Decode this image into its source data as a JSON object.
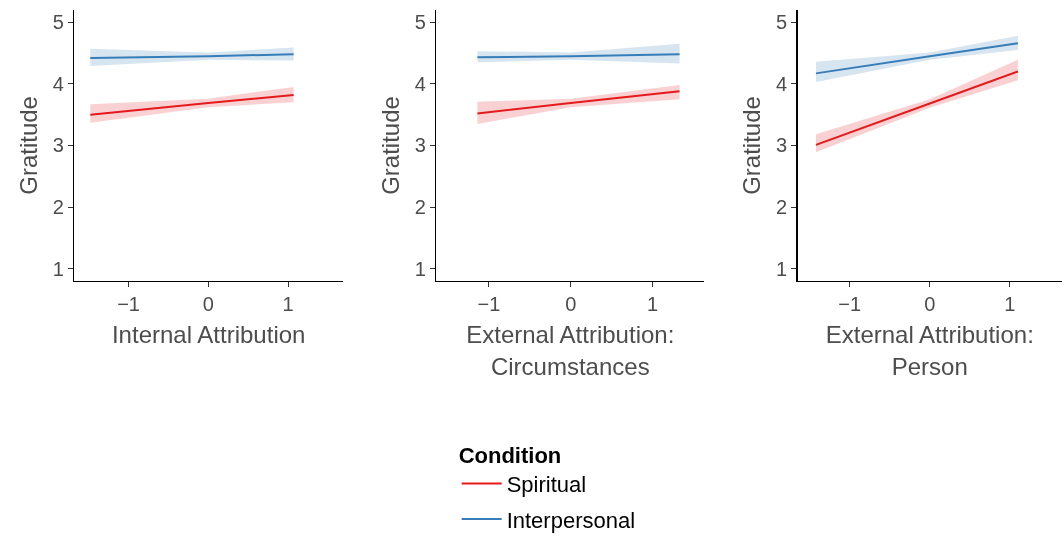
{
  "chart_data": [
    {
      "type": "line",
      "xlabel": "Internal Attribution",
      "ylabel": "Gratitude",
      "xlim": [
        -1.68,
        1.69
      ],
      "xticks": [
        -1,
        0,
        1
      ],
      "ylim": [
        0.8,
        5.2
      ],
      "yticks": [
        1,
        2,
        3,
        4,
        5
      ],
      "grid": false,
      "legend": "bottom",
      "legend_title": "Condition",
      "series": [
        {
          "name": "Spiritual",
          "color": "#e41a1c",
          "x": [
            -1.48,
            0,
            1.07
          ],
          "values": [
            3.5,
            3.69,
            3.82
          ],
          "lower": [
            3.37,
            3.62,
            3.7
          ],
          "upper": [
            3.67,
            3.76,
            3.95
          ]
        },
        {
          "name": "Interpersonal",
          "color": "#377eb8",
          "x": [
            -1.48,
            0,
            1.07
          ],
          "values": [
            4.42,
            4.45,
            4.48
          ],
          "lower": [
            4.29,
            4.39,
            4.38
          ],
          "upper": [
            4.57,
            4.51,
            4.59
          ]
        }
      ]
    },
    {
      "type": "line",
      "xlabel": "External Attribution:\nCircumstances",
      "ylabel": "Gratitude",
      "xlim": [
        -1.64,
        1.63
      ],
      "xticks": [
        -1,
        0,
        1
      ],
      "ylim": [
        0.8,
        5.2
      ],
      "yticks": [
        1,
        2,
        3,
        4,
        5
      ],
      "grid": false,
      "legend": "bottom",
      "series": [
        {
          "name": "Spiritual",
          "color": "#e41a1c",
          "x": [
            -1.14,
            0,
            1.33
          ],
          "values": [
            3.52,
            3.69,
            3.88
          ],
          "lower": [
            3.35,
            3.62,
            3.75
          ],
          "upper": [
            3.71,
            3.76,
            3.98
          ]
        },
        {
          "name": "Interpersonal",
          "color": "#377eb8",
          "x": [
            -1.14,
            0,
            1.33
          ],
          "values": [
            4.43,
            4.45,
            4.48
          ],
          "lower": [
            4.35,
            4.39,
            4.33
          ],
          "upper": [
            4.53,
            4.51,
            4.65
          ]
        }
      ]
    },
    {
      "type": "line",
      "xlabel": "External Attribution:\nPerson",
      "ylabel": "Gratitude",
      "xlim": [
        -1.65,
        1.65
      ],
      "xticks": [
        -1,
        0,
        1
      ],
      "ylim": [
        0.8,
        5.2
      ],
      "yticks": [
        1,
        2,
        3,
        4,
        5
      ],
      "grid": false,
      "legend": "bottom",
      "series": [
        {
          "name": "Spiritual",
          "color": "#e41a1c",
          "x": [
            -1.42,
            0,
            1.1
          ],
          "values": [
            3.01,
            3.68,
            4.2
          ],
          "lower": [
            2.89,
            3.61,
            4.06
          ],
          "upper": [
            3.18,
            3.75,
            4.39
          ]
        },
        {
          "name": "Interpersonal",
          "color": "#377eb8",
          "x": [
            -1.42,
            0,
            1.1
          ],
          "values": [
            4.17,
            4.45,
            4.66
          ],
          "lower": [
            4.03,
            4.39,
            4.55
          ],
          "upper": [
            4.36,
            4.51,
            4.78
          ]
        }
      ]
    }
  ]
}
